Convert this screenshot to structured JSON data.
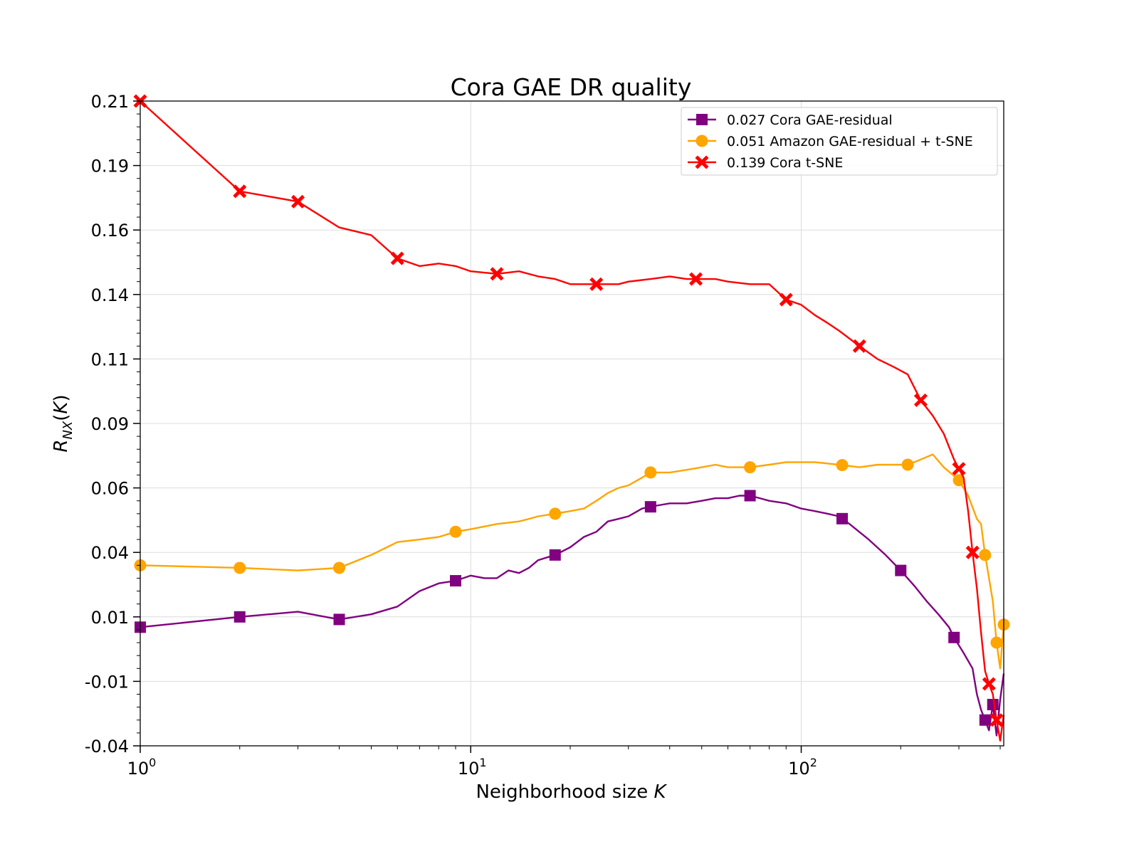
{
  "chart_data": {
    "type": "line",
    "title": "Cora GAE DR quality",
    "xlabel_text": "Neighborhood size ",
    "xlabel_var": "K",
    "ylabel": "R_NX(K)",
    "xscale": "log",
    "xlim": [
      1,
      410
    ],
    "ylim": [
      -0.04,
      0.21
    ],
    "grid": true,
    "legend_position": "top-right",
    "y_ticks": [
      {
        "value": -0.04,
        "label": "-0.04"
      },
      {
        "value": -0.015,
        "label": "-0.01"
      },
      {
        "value": 0.01,
        "label": "0.01"
      },
      {
        "value": 0.035,
        "label": "0.04"
      },
      {
        "value": 0.06,
        "label": "0.06"
      },
      {
        "value": 0.085,
        "label": "0.09"
      },
      {
        "value": 0.11,
        "label": "0.11"
      },
      {
        "value": 0.135,
        "label": "0.14"
      },
      {
        "value": 0.16,
        "label": "0.16"
      },
      {
        "value": 0.185,
        "label": "0.19"
      },
      {
        "value": 0.21,
        "label": "0.21"
      }
    ],
    "x_ticks": [
      {
        "value": 1,
        "base": "10",
        "exp": "0"
      },
      {
        "value": 10,
        "base": "10",
        "exp": "1"
      },
      {
        "value": 100,
        "base": "10",
        "exp": "2"
      }
    ],
    "series": [
      {
        "name": "0.027 Cora GAE-residual",
        "color": "#800080",
        "marker": "square",
        "points": [
          [
            1,
            0.006
          ],
          [
            2,
            0.01
          ],
          [
            3,
            0.012
          ],
          [
            4,
            0.009
          ],
          [
            5,
            0.011
          ],
          [
            6,
            0.014
          ],
          [
            7,
            0.02
          ],
          [
            8,
            0.023
          ],
          [
            9,
            0.024
          ],
          [
            10,
            0.026
          ],
          [
            11,
            0.025
          ],
          [
            12,
            0.025
          ],
          [
            13,
            0.028
          ],
          [
            14,
            0.027
          ],
          [
            15,
            0.029
          ],
          [
            16,
            0.032
          ],
          [
            18,
            0.034
          ],
          [
            20,
            0.037
          ],
          [
            22,
            0.041
          ],
          [
            24,
            0.043
          ],
          [
            26,
            0.047
          ],
          [
            28,
            0.048
          ],
          [
            30,
            0.049
          ],
          [
            33,
            0.052
          ],
          [
            36,
            0.053
          ],
          [
            40,
            0.054
          ],
          [
            45,
            0.054
          ],
          [
            50,
            0.055
          ],
          [
            55,
            0.056
          ],
          [
            60,
            0.056
          ],
          [
            65,
            0.057
          ],
          [
            70,
            0.057
          ],
          [
            75,
            0.056
          ],
          [
            80,
            0.055
          ],
          [
            90,
            0.054
          ],
          [
            100,
            0.052
          ],
          [
            110,
            0.051
          ],
          [
            120,
            0.05
          ],
          [
            130,
            0.049
          ],
          [
            140,
            0.046
          ],
          [
            160,
            0.04
          ],
          [
            180,
            0.034
          ],
          [
            200,
            0.028
          ],
          [
            220,
            0.022
          ],
          [
            240,
            0.016
          ],
          [
            260,
            0.011
          ],
          [
            280,
            0.006
          ],
          [
            290,
            0.002
          ],
          [
            310,
            -0.004
          ],
          [
            330,
            -0.01
          ],
          [
            340,
            -0.02
          ],
          [
            350,
            -0.026
          ],
          [
            360,
            -0.03
          ],
          [
            370,
            -0.034
          ],
          [
            380,
            -0.024
          ],
          [
            390,
            -0.036
          ],
          [
            400,
            -0.022
          ],
          [
            410,
            -0.012
          ]
        ],
        "markers_x": [
          1,
          2,
          4,
          9,
          18,
          35,
          70,
          133,
          200,
          290,
          360,
          380
        ]
      },
      {
        "name": "0.051 Amazon GAE-residual + t-SNE",
        "color": "#ffa500",
        "marker": "circle",
        "points": [
          [
            1,
            0.03
          ],
          [
            2,
            0.029
          ],
          [
            3,
            0.028
          ],
          [
            4,
            0.029
          ],
          [
            5,
            0.034
          ],
          [
            6,
            0.039
          ],
          [
            7,
            0.04
          ],
          [
            8,
            0.041
          ],
          [
            9,
            0.043
          ],
          [
            10,
            0.044
          ],
          [
            12,
            0.046
          ],
          [
            14,
            0.047
          ],
          [
            15,
            0.048
          ],
          [
            16,
            0.049
          ],
          [
            18,
            0.05
          ],
          [
            20,
            0.051
          ],
          [
            22,
            0.052
          ],
          [
            24,
            0.055
          ],
          [
            26,
            0.058
          ],
          [
            28,
            0.06
          ],
          [
            30,
            0.061
          ],
          [
            33,
            0.064
          ],
          [
            35,
            0.066
          ],
          [
            40,
            0.066
          ],
          [
            45,
            0.067
          ],
          [
            50,
            0.068
          ],
          [
            55,
            0.069
          ],
          [
            60,
            0.068
          ],
          [
            70,
            0.068
          ],
          [
            80,
            0.069
          ],
          [
            90,
            0.07
          ],
          [
            100,
            0.07
          ],
          [
            110,
            0.07
          ],
          [
            130,
            0.069
          ],
          [
            150,
            0.068
          ],
          [
            170,
            0.069
          ],
          [
            190,
            0.069
          ],
          [
            210,
            0.069
          ],
          [
            230,
            0.071
          ],
          [
            250,
            0.073
          ],
          [
            270,
            0.068
          ],
          [
            300,
            0.063
          ],
          [
            320,
            0.057
          ],
          [
            340,
            0.048
          ],
          [
            350,
            0.046
          ],
          [
            360,
            0.034
          ],
          [
            370,
            0.025
          ],
          [
            380,
            0.016
          ],
          [
            390,
            0.0
          ],
          [
            400,
            -0.01
          ],
          [
            410,
            0.007
          ]
        ],
        "markers_x": [
          1,
          2,
          4,
          9,
          18,
          35,
          70,
          133,
          210,
          300,
          360,
          390,
          410
        ]
      },
      {
        "name": "0.139 Cora t-SNE",
        "color": "#ff0000",
        "marker": "x",
        "points": [
          [
            1,
            0.21
          ],
          [
            2,
            0.175
          ],
          [
            3,
            0.171
          ],
          [
            4,
            0.161
          ],
          [
            5,
            0.158
          ],
          [
            6,
            0.149
          ],
          [
            7,
            0.146
          ],
          [
            8,
            0.147
          ],
          [
            9,
            0.146
          ],
          [
            10,
            0.144
          ],
          [
            12,
            0.143
          ],
          [
            14,
            0.144
          ],
          [
            16,
            0.142
          ],
          [
            18,
            0.141
          ],
          [
            20,
            0.139
          ],
          [
            22,
            0.139
          ],
          [
            24,
            0.139
          ],
          [
            28,
            0.139
          ],
          [
            30,
            0.14
          ],
          [
            35,
            0.141
          ],
          [
            40,
            0.142
          ],
          [
            45,
            0.141
          ],
          [
            50,
            0.141
          ],
          [
            55,
            0.141
          ],
          [
            60,
            0.14
          ],
          [
            70,
            0.139
          ],
          [
            80,
            0.139
          ],
          [
            90,
            0.133
          ],
          [
            100,
            0.131
          ],
          [
            110,
            0.127
          ],
          [
            120,
            0.124
          ],
          [
            130,
            0.121
          ],
          [
            150,
            0.115
          ],
          [
            170,
            0.11
          ],
          [
            190,
            0.107
          ],
          [
            210,
            0.104
          ],
          [
            230,
            0.094
          ],
          [
            250,
            0.088
          ],
          [
            270,
            0.081
          ],
          [
            290,
            0.071
          ],
          [
            310,
            0.064
          ],
          [
            320,
            0.051
          ],
          [
            330,
            0.035
          ],
          [
            340,
            0.021
          ],
          [
            350,
            0.004
          ],
          [
            360,
            -0.011
          ],
          [
            370,
            -0.016
          ],
          [
            380,
            -0.02
          ],
          [
            390,
            -0.03
          ],
          [
            400,
            -0.038
          ],
          [
            410,
            -0.028
          ]
        ],
        "markers_x": [
          1,
          2,
          3,
          6,
          12,
          24,
          48,
          90,
          150,
          230,
          300,
          330,
          370,
          390
        ]
      }
    ]
  }
}
